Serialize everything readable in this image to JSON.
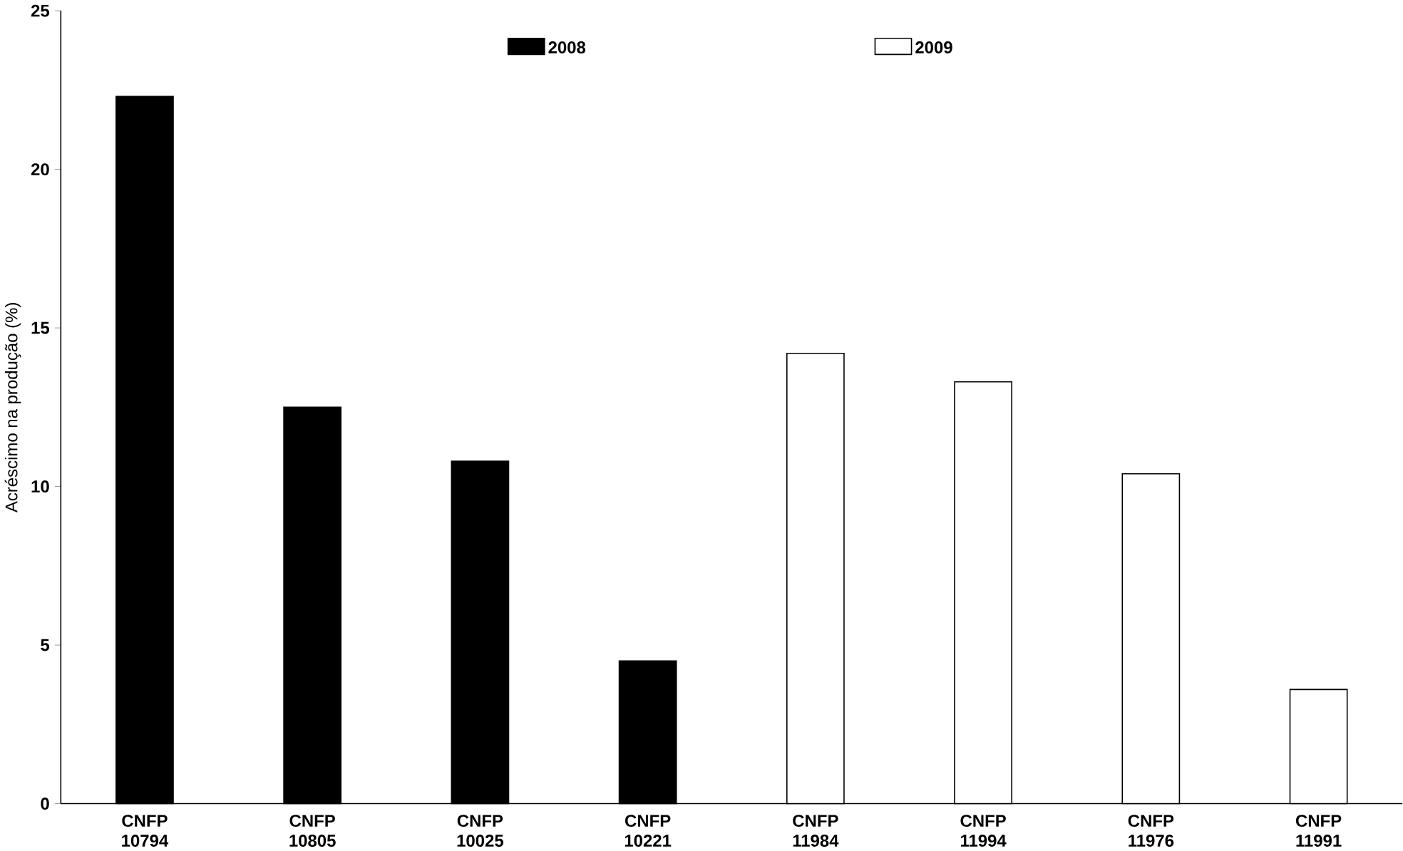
{
  "chart_data": {
    "type": "bar",
    "ylabel": "Acréscimo na produção (%)",
    "categories": [
      "CNFP 10794",
      "CNFP 10805",
      "CNFP 10025",
      "CNFP 10221",
      "CNFP 11984",
      "CNFP 11994",
      "CNFP 11976",
      "CNFP 11991"
    ],
    "series": [
      {
        "name": "2008",
        "color": "#000000",
        "values": [
          22.3,
          12.5,
          10.8,
          4.5,
          null,
          null,
          null,
          null
        ]
      },
      {
        "name": "2009",
        "color": "#ffffff",
        "values": [
          null,
          null,
          null,
          null,
          14.2,
          13.3,
          10.4,
          3.6
        ]
      }
    ],
    "ylim": [
      0,
      25
    ],
    "yticks": [
      0,
      5,
      10,
      15,
      20,
      25
    ],
    "legend": "top",
    "grid": false
  }
}
